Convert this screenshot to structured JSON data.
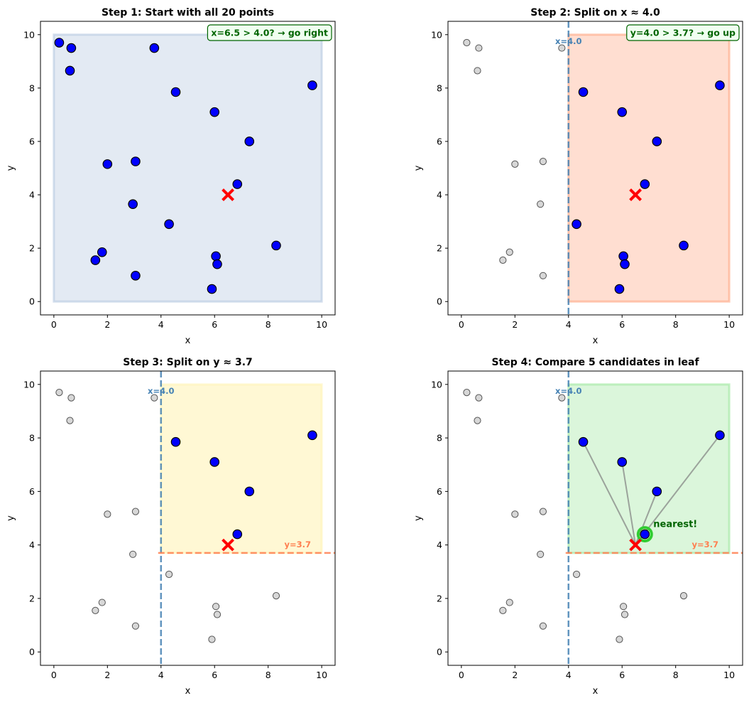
{
  "colors": {
    "active_point": "#0000ff",
    "inactive_point": "#d3d3d3",
    "query": "#ff0000",
    "x_split": "#4682b4",
    "y_split": "#ff7f50",
    "region_all": "#b0c4de",
    "region_right": "#ffa07a",
    "region_up": "#fff3b0",
    "region_leaf": "#98e698",
    "annotation": "#006400",
    "nearest": "#32cd32",
    "candidate_line": "#808080"
  },
  "chart_data": [
    {
      "type": "scatter",
      "title": "Step 1: Start with all 20 points",
      "xlabel": "x",
      "ylabel": "y",
      "xlim": [
        -0.5,
        10.5
      ],
      "ylim": [
        -0.5,
        10.5
      ],
      "xticks": [
        0,
        2,
        4,
        6,
        8,
        10
      ],
      "yticks": [
        0,
        2,
        4,
        6,
        8,
        10
      ],
      "region": {
        "x": [
          0,
          10
        ],
        "y": [
          0,
          10
        ],
        "color_key": "region_all"
      },
      "points": [
        {
          "x": 0.2,
          "y": 9.7,
          "active": true
        },
        {
          "x": 0.65,
          "y": 9.5,
          "active": true
        },
        {
          "x": 0.6,
          "y": 8.65,
          "active": true
        },
        {
          "x": 3.75,
          "y": 9.5,
          "active": true
        },
        {
          "x": 4.55,
          "y": 7.85,
          "active": true
        },
        {
          "x": 9.65,
          "y": 8.1,
          "active": true
        },
        {
          "x": 6.0,
          "y": 7.1,
          "active": true
        },
        {
          "x": 7.3,
          "y": 6.0,
          "active": true
        },
        {
          "x": 2.0,
          "y": 5.15,
          "active": true
        },
        {
          "x": 3.05,
          "y": 5.25,
          "active": true
        },
        {
          "x": 6.85,
          "y": 4.4,
          "active": true
        },
        {
          "x": 2.95,
          "y": 3.65,
          "active": true
        },
        {
          "x": 4.3,
          "y": 2.9,
          "active": true
        },
        {
          "x": 8.3,
          "y": 2.1,
          "active": true
        },
        {
          "x": 1.8,
          "y": 1.85,
          "active": true
        },
        {
          "x": 1.55,
          "y": 1.55,
          "active": true
        },
        {
          "x": 6.05,
          "y": 1.7,
          "active": true
        },
        {
          "x": 6.1,
          "y": 1.4,
          "active": true
        },
        {
          "x": 3.05,
          "y": 0.97,
          "active": true
        },
        {
          "x": 5.9,
          "y": 0.47,
          "active": true
        }
      ],
      "query": {
        "x": 6.5,
        "y": 4.0
      },
      "annotation": "x=6.5 > 4.0? → go right"
    },
    {
      "type": "scatter",
      "title": "Step 2: Split on x ≈ 4.0",
      "xlabel": "x",
      "ylabel": "y",
      "xlim": [
        -0.5,
        10.5
      ],
      "ylim": [
        -0.5,
        10.5
      ],
      "xticks": [
        0,
        2,
        4,
        6,
        8,
        10
      ],
      "yticks": [
        0,
        2,
        4,
        6,
        8,
        10
      ],
      "region": {
        "x": [
          4.0,
          10
        ],
        "y": [
          0,
          10
        ],
        "color_key": "region_right"
      },
      "x_split": {
        "value": 4.0,
        "label": "x=4.0"
      },
      "points": [
        {
          "x": 0.2,
          "y": 9.7,
          "active": false
        },
        {
          "x": 0.65,
          "y": 9.5,
          "active": false
        },
        {
          "x": 0.6,
          "y": 8.65,
          "active": false
        },
        {
          "x": 3.75,
          "y": 9.5,
          "active": false
        },
        {
          "x": 4.55,
          "y": 7.85,
          "active": true
        },
        {
          "x": 9.65,
          "y": 8.1,
          "active": true
        },
        {
          "x": 6.0,
          "y": 7.1,
          "active": true
        },
        {
          "x": 7.3,
          "y": 6.0,
          "active": true
        },
        {
          "x": 2.0,
          "y": 5.15,
          "active": false
        },
        {
          "x": 3.05,
          "y": 5.25,
          "active": false
        },
        {
          "x": 6.85,
          "y": 4.4,
          "active": true
        },
        {
          "x": 2.95,
          "y": 3.65,
          "active": false
        },
        {
          "x": 4.3,
          "y": 2.9,
          "active": true
        },
        {
          "x": 8.3,
          "y": 2.1,
          "active": true
        },
        {
          "x": 1.8,
          "y": 1.85,
          "active": false
        },
        {
          "x": 1.55,
          "y": 1.55,
          "active": false
        },
        {
          "x": 6.05,
          "y": 1.7,
          "active": true
        },
        {
          "x": 6.1,
          "y": 1.4,
          "active": true
        },
        {
          "x": 3.05,
          "y": 0.97,
          "active": false
        },
        {
          "x": 5.9,
          "y": 0.47,
          "active": true
        }
      ],
      "query": {
        "x": 6.5,
        "y": 4.0
      },
      "annotation": "y=4.0 > 3.7? → go up"
    },
    {
      "type": "scatter",
      "title": "Step 3: Split on y ≈ 3.7",
      "xlabel": "x",
      "ylabel": "y",
      "xlim": [
        -0.5,
        10.5
      ],
      "ylim": [
        -0.5,
        10.5
      ],
      "xticks": [
        0,
        2,
        4,
        6,
        8,
        10
      ],
      "yticks": [
        0,
        2,
        4,
        6,
        8,
        10
      ],
      "region": {
        "x": [
          4.0,
          10
        ],
        "y": [
          3.7,
          10
        ],
        "color_key": "region_up"
      },
      "x_split": {
        "value": 4.0,
        "label": "x=4.0"
      },
      "y_split": {
        "value": 3.7,
        "x_from": 4.0,
        "label": "y=3.7"
      },
      "points": [
        {
          "x": 0.2,
          "y": 9.7,
          "active": false
        },
        {
          "x": 0.65,
          "y": 9.5,
          "active": false
        },
        {
          "x": 0.6,
          "y": 8.65,
          "active": false
        },
        {
          "x": 3.75,
          "y": 9.5,
          "active": false
        },
        {
          "x": 4.55,
          "y": 7.85,
          "active": true
        },
        {
          "x": 9.65,
          "y": 8.1,
          "active": true
        },
        {
          "x": 6.0,
          "y": 7.1,
          "active": true
        },
        {
          "x": 7.3,
          "y": 6.0,
          "active": true
        },
        {
          "x": 2.0,
          "y": 5.15,
          "active": false
        },
        {
          "x": 3.05,
          "y": 5.25,
          "active": false
        },
        {
          "x": 6.85,
          "y": 4.4,
          "active": true
        },
        {
          "x": 2.95,
          "y": 3.65,
          "active": false
        },
        {
          "x": 4.3,
          "y": 2.9,
          "active": false
        },
        {
          "x": 8.3,
          "y": 2.1,
          "active": false
        },
        {
          "x": 1.8,
          "y": 1.85,
          "active": false
        },
        {
          "x": 1.55,
          "y": 1.55,
          "active": false
        },
        {
          "x": 6.05,
          "y": 1.7,
          "active": false
        },
        {
          "x": 6.1,
          "y": 1.4,
          "active": false
        },
        {
          "x": 3.05,
          "y": 0.97,
          "active": false
        },
        {
          "x": 5.9,
          "y": 0.47,
          "active": false
        }
      ],
      "query": {
        "x": 6.5,
        "y": 4.0
      }
    },
    {
      "type": "scatter",
      "title": "Step 4: Compare 5 candidates in leaf",
      "xlabel": "x",
      "ylabel": "y",
      "xlim": [
        -0.5,
        10.5
      ],
      "ylim": [
        -0.5,
        10.5
      ],
      "xticks": [
        0,
        2,
        4,
        6,
        8,
        10
      ],
      "yticks": [
        0,
        2,
        4,
        6,
        8,
        10
      ],
      "region": {
        "x": [
          4.0,
          10
        ],
        "y": [
          3.7,
          10
        ],
        "color_key": "region_leaf"
      },
      "x_split": {
        "value": 4.0,
        "label": "x=4.0"
      },
      "y_split": {
        "value": 3.7,
        "x_from": 4.0,
        "label": "y=3.7"
      },
      "points": [
        {
          "x": 0.2,
          "y": 9.7,
          "active": false
        },
        {
          "x": 0.65,
          "y": 9.5,
          "active": false
        },
        {
          "x": 0.6,
          "y": 8.65,
          "active": false
        },
        {
          "x": 3.75,
          "y": 9.5,
          "active": false
        },
        {
          "x": 4.55,
          "y": 7.85,
          "active": true
        },
        {
          "x": 9.65,
          "y": 8.1,
          "active": true
        },
        {
          "x": 6.0,
          "y": 7.1,
          "active": true
        },
        {
          "x": 7.3,
          "y": 6.0,
          "active": true
        },
        {
          "x": 2.0,
          "y": 5.15,
          "active": false
        },
        {
          "x": 3.05,
          "y": 5.25,
          "active": false
        },
        {
          "x": 6.85,
          "y": 4.4,
          "active": true
        },
        {
          "x": 2.95,
          "y": 3.65,
          "active": false
        },
        {
          "x": 4.3,
          "y": 2.9,
          "active": false
        },
        {
          "x": 8.3,
          "y": 2.1,
          "active": false
        },
        {
          "x": 1.8,
          "y": 1.85,
          "active": false
        },
        {
          "x": 1.55,
          "y": 1.55,
          "active": false
        },
        {
          "x": 6.05,
          "y": 1.7,
          "active": false
        },
        {
          "x": 6.1,
          "y": 1.4,
          "active": false
        },
        {
          "x": 3.05,
          "y": 0.97,
          "active": false
        },
        {
          "x": 5.9,
          "y": 0.47,
          "active": false
        }
      ],
      "query": {
        "x": 6.5,
        "y": 4.0
      },
      "candidate_lines": true,
      "nearest": {
        "x": 6.85,
        "y": 4.4,
        "label": "nearest!"
      }
    }
  ]
}
